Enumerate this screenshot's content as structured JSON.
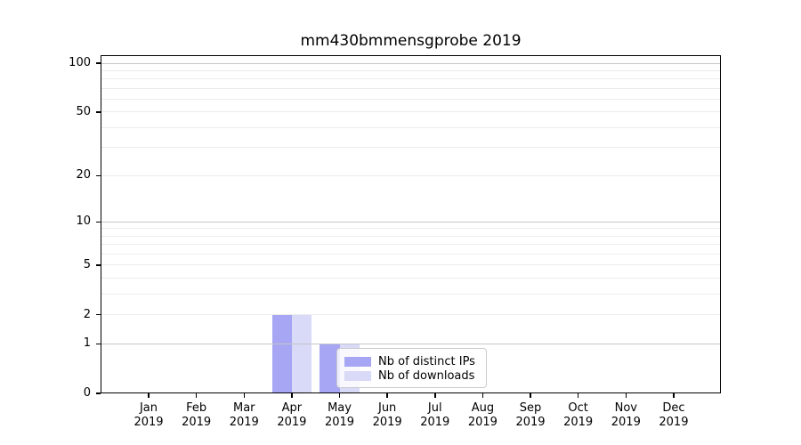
{
  "chart_data": {
    "type": "bar",
    "title": "mm430bmmensgprobe 2019",
    "x_tick_months": [
      "Jan",
      "Feb",
      "Mar",
      "Apr",
      "May",
      "Jun",
      "Jul",
      "Aug",
      "Sep",
      "Oct",
      "Nov",
      "Dec"
    ],
    "x_tick_year": "2019",
    "series": [
      {
        "name": "Nb of distinct IPs",
        "color": "#a6a6f4",
        "values": [
          0,
          0,
          0,
          2,
          1,
          0,
          0,
          0,
          0,
          0,
          0,
          0
        ]
      },
      {
        "name": "Nb of downloads",
        "color": "#d9d9f8",
        "values": [
          0,
          0,
          0,
          2,
          1,
          0,
          0,
          0,
          0,
          0,
          0,
          0
        ]
      }
    ],
    "yscale": "log1p",
    "ylim": [
      0,
      112
    ],
    "yticks": [
      0,
      1,
      2,
      5,
      10,
      20,
      50,
      100
    ],
    "grid": {
      "major_values": [
        1,
        10,
        100
      ],
      "minor_values": [
        2,
        3,
        4,
        5,
        6,
        7,
        8,
        9,
        20,
        30,
        40,
        50,
        60,
        70,
        80,
        90
      ],
      "major_color": "#c6c6c6",
      "minor_color": "#ececec",
      "grid_above_bars": true
    },
    "legend": {
      "position": "lower center, inside plot",
      "items": [
        {
          "label": "Nb of distinct IPs",
          "color": "#a6a6f4"
        },
        {
          "label": "Nb of downloads",
          "color": "#d9d9f8"
        }
      ]
    },
    "axis_color": "#000000",
    "background_color": "#ffffff"
  }
}
